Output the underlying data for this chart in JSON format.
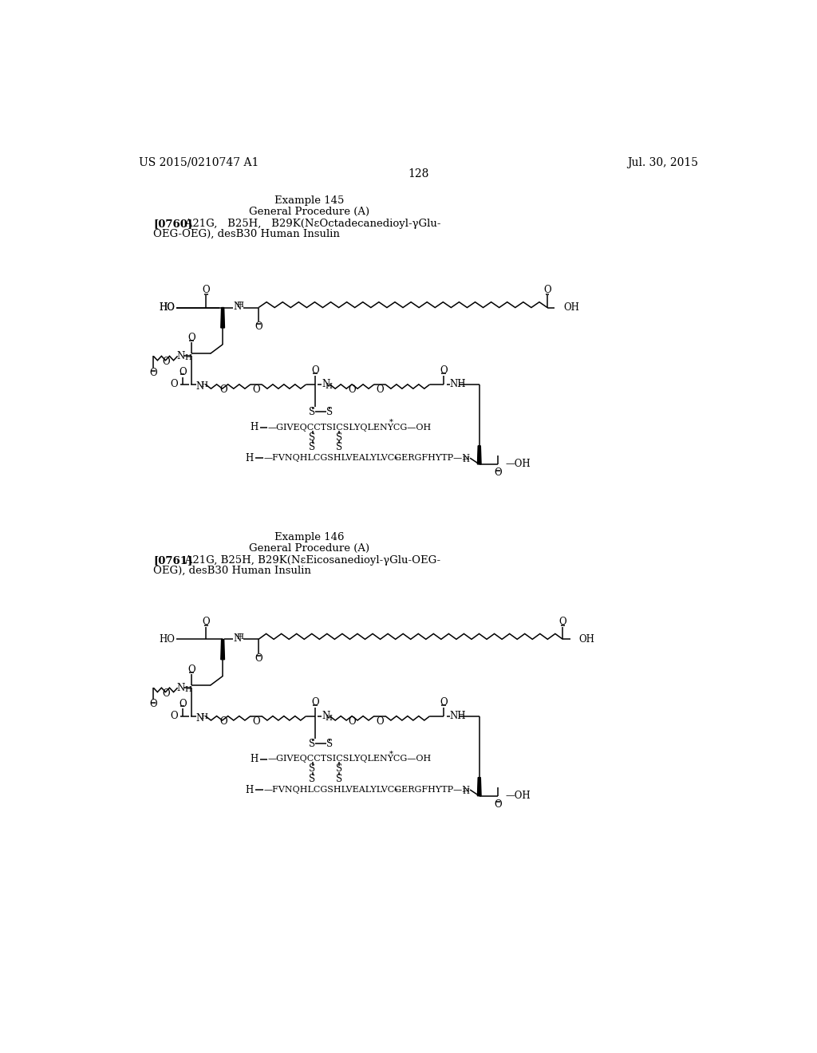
{
  "page_number": "128",
  "patent_number": "US 2015/0210747 A1",
  "patent_date": "Jul. 30, 2015",
  "background_color": "#ffffff",
  "text_color": "#000000",
  "example1_title": "Example 145",
  "example1_procedure": "General Procedure (A)",
  "example1_bold": "[0760]",
  "example1_text": "   A21G,   B25H,   B29K(NεOctadecanedioyl-γGlu-",
  "example1_text2": "OEG-OEG), desB30 Human Insulin",
  "example2_title": "Example 146",
  "example2_procedure": "General Procedure (A)",
  "example2_bold": "[0761]",
  "example2_text": "   A21G, B25H, B29K(NεEicosanedioyl-γGlu-OEG-",
  "example2_text2": "OEG), desB30 Human Insulin",
  "lw": 1.1,
  "fs_header": 10,
  "fs_text": 9.5,
  "fs_chem": 8.5
}
